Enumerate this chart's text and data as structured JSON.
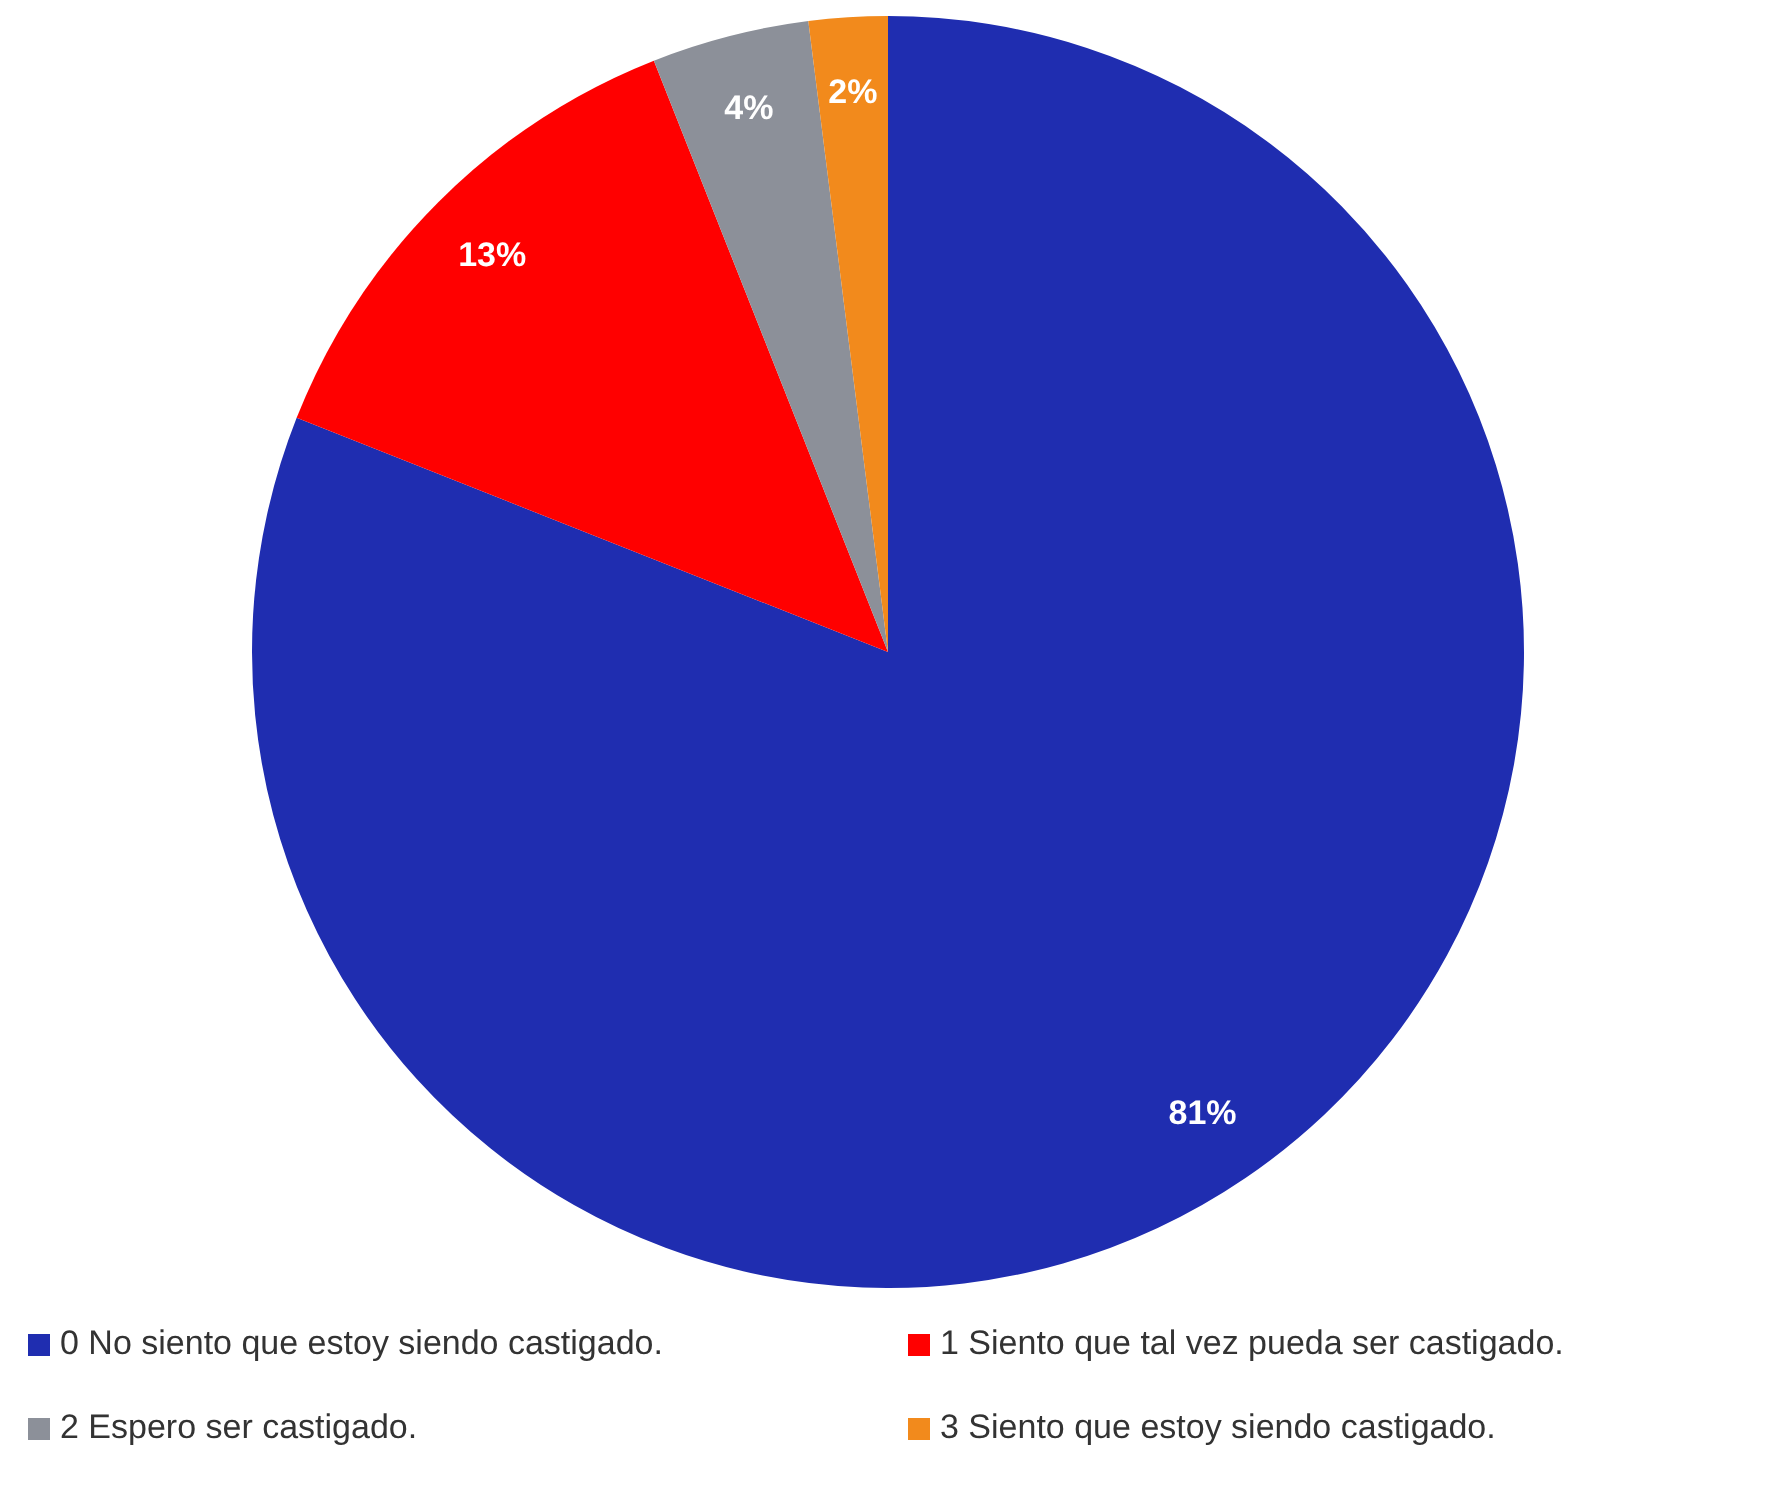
{
  "chart_data": {
    "type": "pie",
    "categories": [
      "0 No siento que estoy siendo castigado.",
      "1 Siento que tal vez pueda ser castigado.",
      "2 Espero ser castigado.",
      "3 Siento que estoy siendo castigado."
    ],
    "values": [
      81,
      13,
      4,
      2
    ],
    "colors": [
      "#1f2db0",
      "#ff0000",
      "#8c9099",
      "#f28a1c"
    ],
    "value_labels": [
      "81%",
      "13%",
      "4%",
      "2%"
    ],
    "legend": "bottom"
  }
}
